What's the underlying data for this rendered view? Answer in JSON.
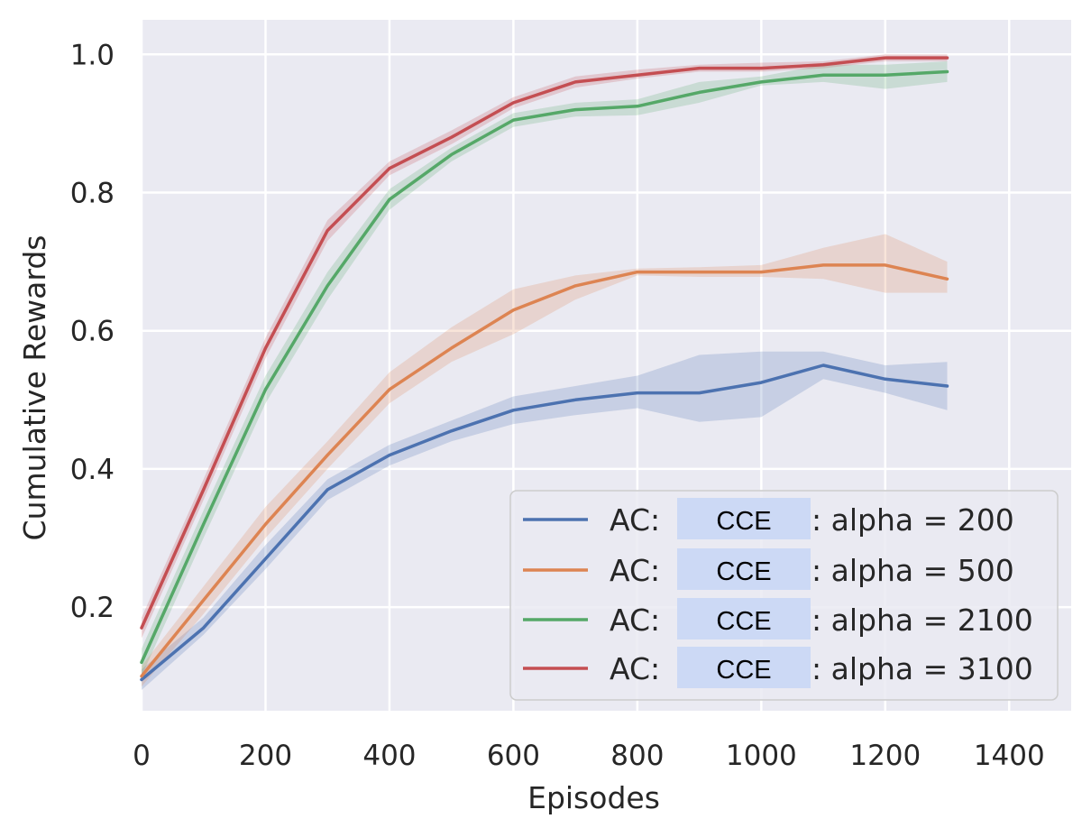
{
  "chart_data": {
    "type": "line",
    "title": "",
    "xlabel": "Episodes",
    "ylabel": "Cumulative Rewards",
    "xlim": [
      0,
      1500
    ],
    "ylim": [
      0.05,
      1.05
    ],
    "xticks": [
      0,
      200,
      400,
      600,
      800,
      1000,
      1200,
      1400
    ],
    "yticks": [
      0.2,
      0.4,
      0.6,
      0.8,
      1.0
    ],
    "xtick_labels": [
      "0",
      "200",
      "400",
      "600",
      "800",
      "1000",
      "1200",
      "1400"
    ],
    "ytick_labels": [
      "0.2",
      "0.4",
      "0.6",
      "0.8",
      "1.0"
    ],
    "grid": true,
    "legend_position": "bottom-right",
    "x": [
      0,
      100,
      200,
      300,
      400,
      500,
      600,
      700,
      800,
      900,
      1000,
      1100,
      1200,
      1300
    ],
    "series": [
      {
        "name": "AC: CCE: alpha = 200",
        "prefix": "AC:",
        "masked": "CCE",
        "suffix": ": alpha = 200",
        "color": "#4c72b0",
        "values": [
          0.095,
          0.17,
          0.27,
          0.37,
          0.42,
          0.455,
          0.485,
          0.5,
          0.51,
          0.51,
          0.525,
          0.55,
          0.53,
          0.52
        ],
        "lower": [
          0.08,
          0.16,
          0.255,
          0.355,
          0.405,
          0.44,
          0.465,
          0.478,
          0.488,
          0.468,
          0.475,
          0.53,
          0.51,
          0.485
        ],
        "upper": [
          0.11,
          0.185,
          0.29,
          0.385,
          0.435,
          0.47,
          0.505,
          0.52,
          0.535,
          0.565,
          0.57,
          0.57,
          0.55,
          0.555
        ]
      },
      {
        "name": "AC: CCE: alpha = 500",
        "prefix": "AC:",
        "masked": "CCE",
        "suffix": ": alpha = 500",
        "color": "#dd8452",
        "values": [
          0.1,
          0.21,
          0.32,
          0.42,
          0.515,
          0.575,
          0.63,
          0.665,
          0.685,
          0.685,
          0.685,
          0.695,
          0.695,
          0.675
        ],
        "lower": [
          0.085,
          0.19,
          0.3,
          0.4,
          0.495,
          0.555,
          0.595,
          0.645,
          0.68,
          0.678,
          0.678,
          0.675,
          0.655,
          0.655
        ],
        "upper": [
          0.115,
          0.23,
          0.345,
          0.44,
          0.54,
          0.605,
          0.66,
          0.68,
          0.69,
          0.692,
          0.695,
          0.72,
          0.74,
          0.7
        ]
      },
      {
        "name": "AC: CCE: alpha = 2100",
        "prefix": "AC:",
        "masked": "CCE",
        "suffix": ": alpha = 2100",
        "color": "#55a868",
        "values": [
          0.12,
          0.32,
          0.515,
          0.665,
          0.79,
          0.855,
          0.905,
          0.92,
          0.925,
          0.945,
          0.96,
          0.97,
          0.97,
          0.975
        ],
        "lower": [
          0.1,
          0.3,
          0.495,
          0.645,
          0.775,
          0.845,
          0.895,
          0.91,
          0.912,
          0.93,
          0.955,
          0.96,
          0.95,
          0.96
        ],
        "upper": [
          0.14,
          0.34,
          0.535,
          0.685,
          0.805,
          0.865,
          0.915,
          0.93,
          0.935,
          0.96,
          0.968,
          0.985,
          0.985,
          0.99
        ]
      },
      {
        "name": "AC: CCE: alpha = 3100",
        "prefix": "AC:",
        "masked": "CCE",
        "suffix": ": alpha = 3100",
        "color": "#c44e52",
        "values": [
          0.17,
          0.37,
          0.575,
          0.745,
          0.835,
          0.88,
          0.93,
          0.96,
          0.97,
          0.98,
          0.98,
          0.985,
          0.995,
          0.995
        ],
        "lower": [
          0.155,
          0.355,
          0.56,
          0.73,
          0.825,
          0.87,
          0.922,
          0.952,
          0.965,
          0.975,
          0.975,
          0.98,
          0.99,
          0.99
        ],
        "upper": [
          0.185,
          0.385,
          0.59,
          0.76,
          0.845,
          0.89,
          0.938,
          0.968,
          0.978,
          0.985,
          0.988,
          0.99,
          1.0,
          1.0
        ]
      }
    ]
  },
  "colors": {
    "plot_background": "#eaeaf2",
    "grid": "#ffffff",
    "legend_background": "#eaeaf2",
    "legend_border": "#cccccc",
    "mask_background": "#ccd9f5",
    "text": "#262626"
  }
}
